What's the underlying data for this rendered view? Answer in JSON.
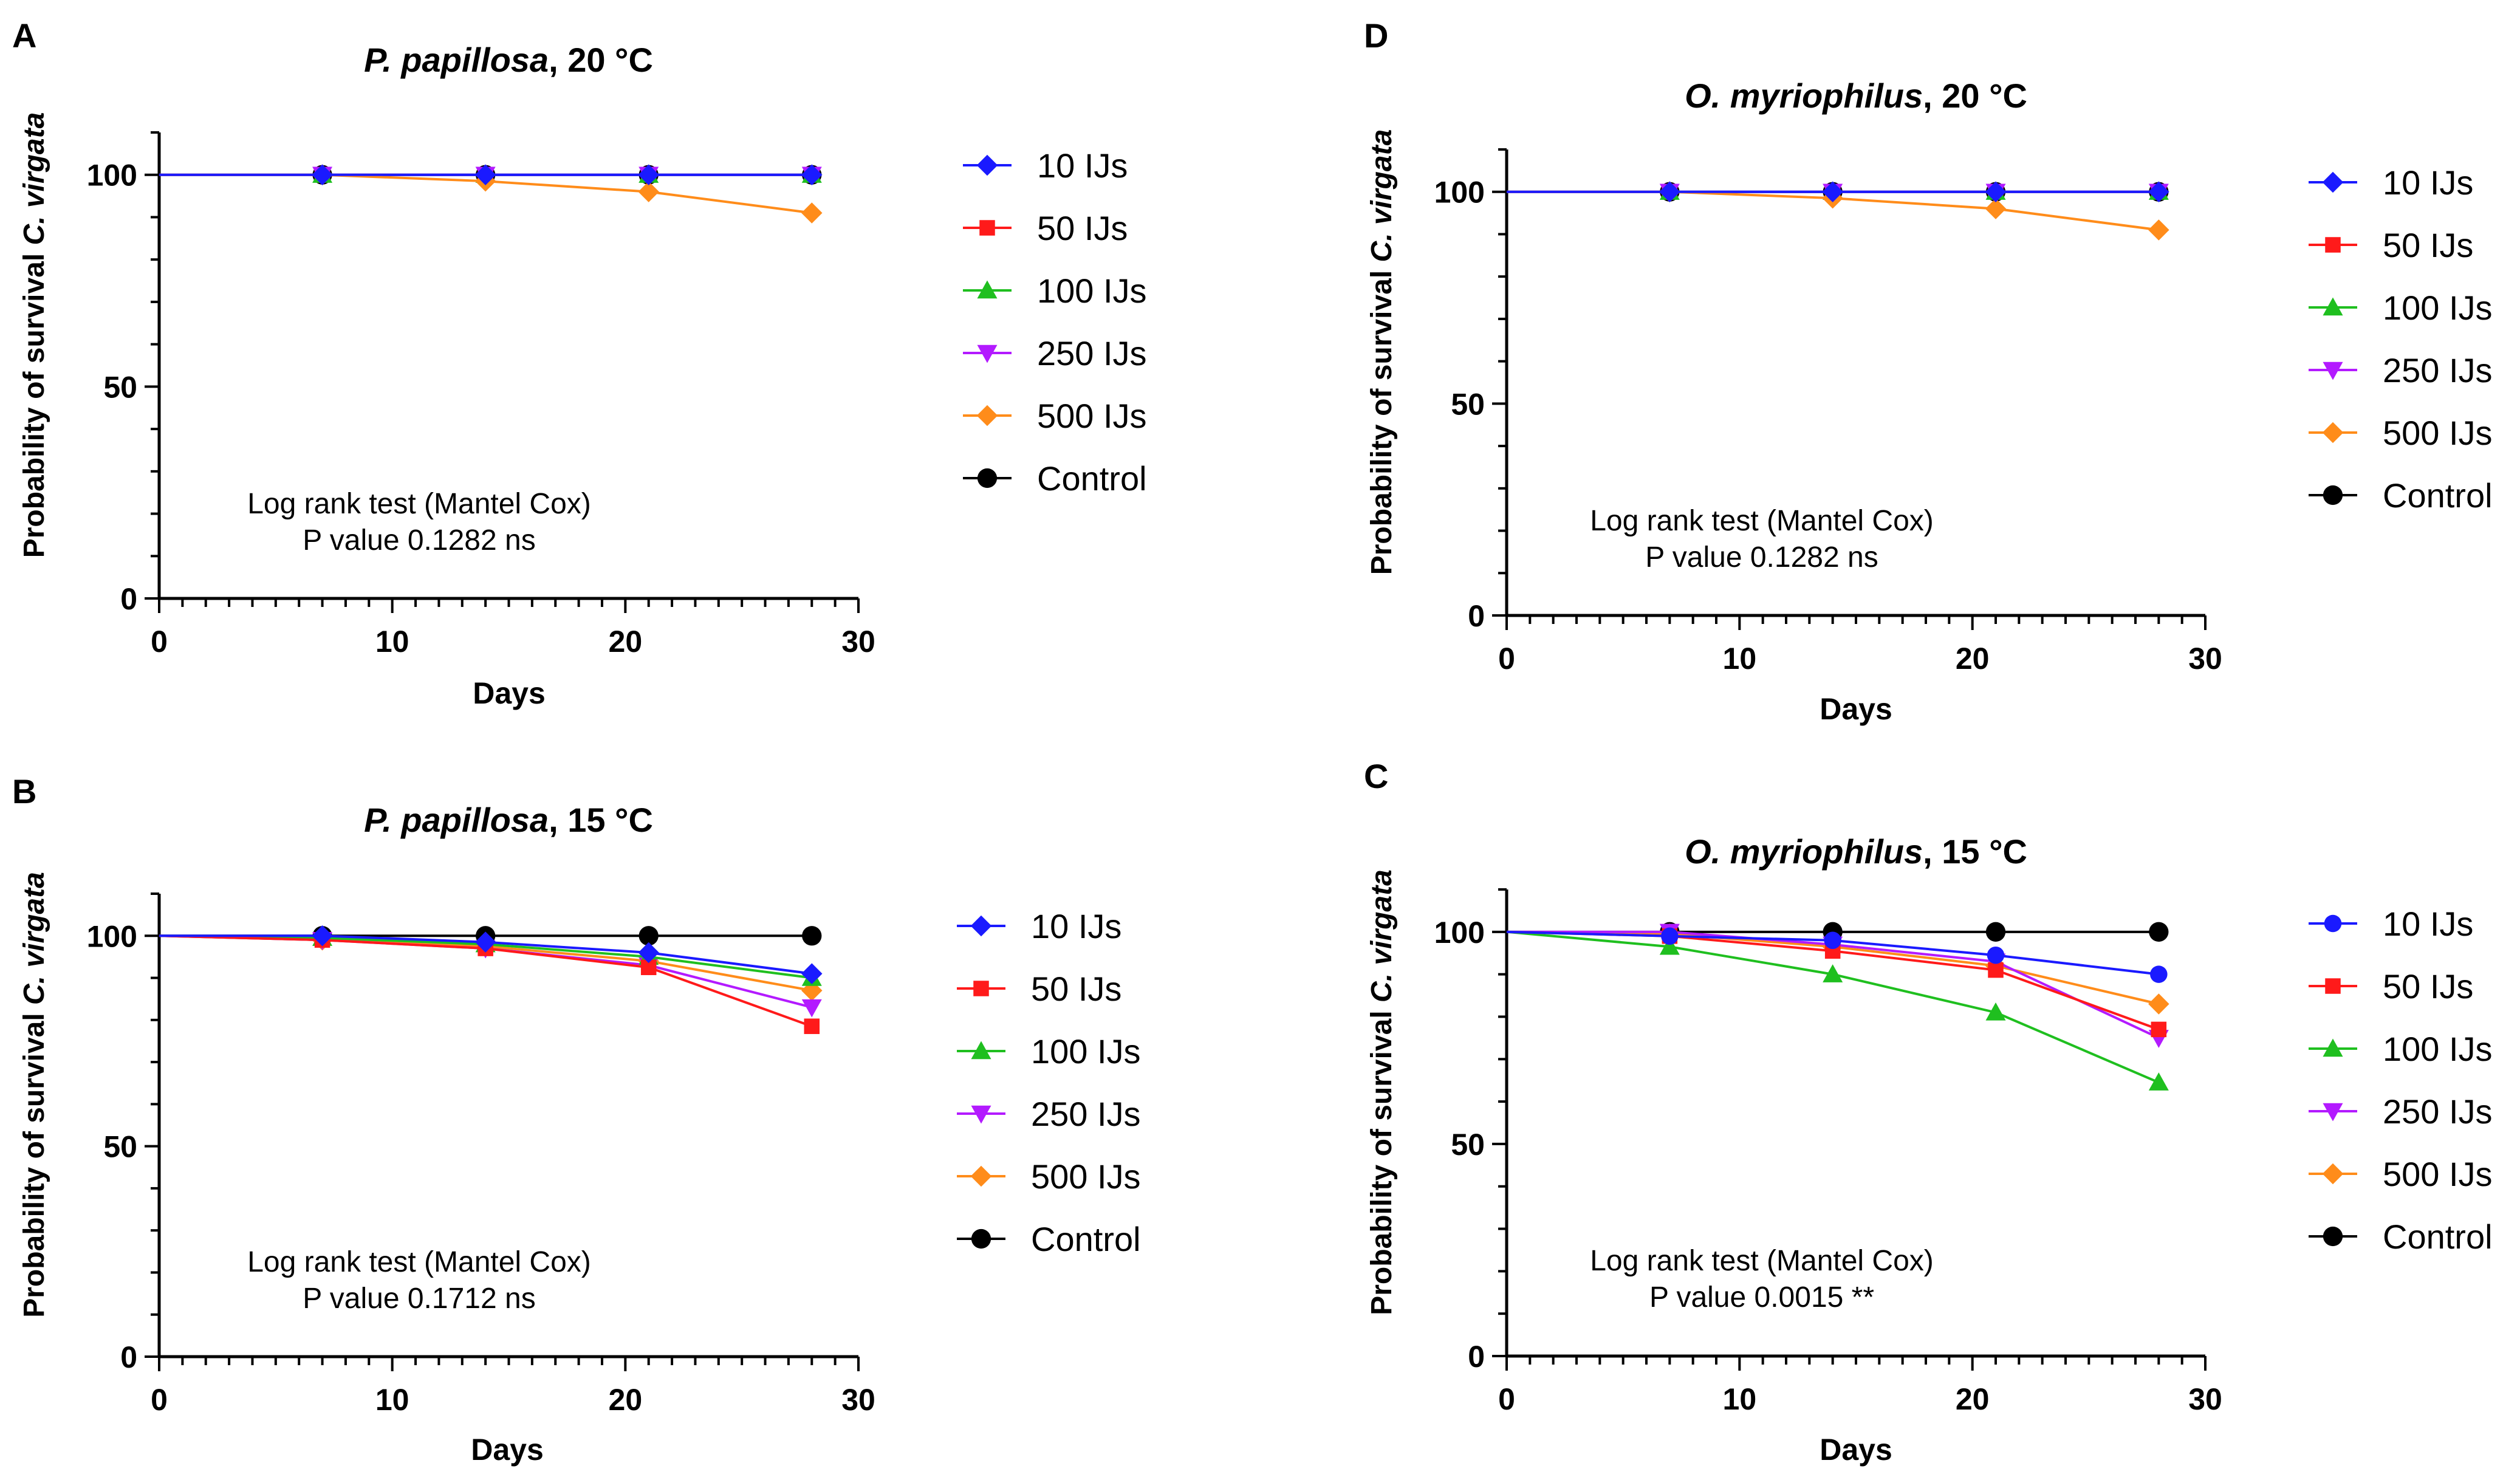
{
  "figure": {
    "legend_labels": [
      "10 IJs",
      "50 IJs",
      "100 IJs",
      "250 IJs",
      "500 IJs",
      "Control"
    ],
    "series_colors": {
      "10 IJs": "#1a1aff",
      "50 IJs": "#ff1a1a",
      "100 IJs": "#1fbf1f",
      "250 IJs": "#b31aff",
      "500 IJs": "#ff8c1a",
      "Control": "#000000"
    },
    "series_markers": {
      "10 IJs": "diamond",
      "50 IJs": "square",
      "100 IJs": "triangle-up",
      "250 IJs": "triangle-down",
      "500 IJs": "diamond",
      "Control": "circle"
    }
  },
  "chart_data": [
    {
      "panel": "A",
      "type": "line",
      "title_species": "P. papillosa",
      "title_temp": ", 20 °C",
      "xlabel": "Days",
      "ylabel_prefix": "Probability of survival ",
      "ylabel_species": "C. virgata",
      "xlim": [
        0,
        30
      ],
      "ylim": [
        0,
        110
      ],
      "xticks": [
        0,
        10,
        20,
        30
      ],
      "yticks": [
        0,
        50,
        100
      ],
      "stat_line1": "Log rank test (Mantel Cox)",
      "stat_line2": "P value 0.1282 ns",
      "x": [
        0,
        7,
        14,
        21,
        28
      ],
      "series": [
        {
          "name": "Control",
          "values": [
            100,
            100,
            100,
            100,
            100
          ]
        },
        {
          "name": "50 IJs",
          "values": [
            100,
            100,
            100,
            100,
            100
          ]
        },
        {
          "name": "100 IJs",
          "values": [
            100,
            100,
            100,
            100,
            100
          ]
        },
        {
          "name": "250 IJs",
          "values": [
            100,
            100,
            100,
            100,
            100
          ]
        },
        {
          "name": "500 IJs",
          "values": [
            100,
            100,
            98.5,
            96,
            91
          ]
        },
        {
          "name": "10 IJs",
          "values": [
            100,
            100,
            100,
            100,
            100
          ]
        }
      ]
    },
    {
      "panel": "B",
      "type": "line",
      "title_species": "P. papillosa",
      "title_temp": ", 15 °C",
      "xlabel": "Days",
      "ylabel_prefix": "Probability of survival ",
      "ylabel_species": "C. virgata",
      "xlim": [
        0,
        30
      ],
      "ylim": [
        0,
        110
      ],
      "xticks": [
        0,
        10,
        20,
        30
      ],
      "yticks": [
        0,
        50,
        100
      ],
      "stat_line1": "Log rank test (Mantel Cox)",
      "stat_line2": "P value 0.1712 ns",
      "x": [
        0,
        7,
        14,
        21,
        28
      ],
      "series": [
        {
          "name": "Control",
          "values": [
            100,
            100,
            100,
            100,
            100
          ]
        },
        {
          "name": "500 IJs",
          "values": [
            100,
            99,
            97.5,
            94,
            87
          ]
        },
        {
          "name": "250 IJs",
          "values": [
            100,
            99,
            97,
            93,
            83
          ]
        },
        {
          "name": "100 IJs",
          "values": [
            100,
            99.5,
            98,
            95,
            90
          ]
        },
        {
          "name": "50 IJs",
          "values": [
            100,
            99,
            97,
            92.5,
            78.5
          ]
        },
        {
          "name": "10 IJs",
          "values": [
            100,
            100,
            98.5,
            96,
            91
          ]
        }
      ]
    },
    {
      "panel": "D",
      "type": "line",
      "title_species": "O. myriophilus",
      "title_temp": ", 20 °C",
      "xlabel": "Days",
      "ylabel_prefix": "Probability of survival ",
      "ylabel_species": "C. virgata",
      "xlim": [
        0,
        30
      ],
      "ylim": [
        0,
        110
      ],
      "xticks": [
        0,
        10,
        20,
        30
      ],
      "yticks": [
        0,
        50,
        100
      ],
      "stat_line1": "Log rank test (Mantel Cox)",
      "stat_line2": "P value 0.1282 ns",
      "x": [
        0,
        7,
        14,
        21,
        28
      ],
      "series": [
        {
          "name": "Control",
          "values": [
            100,
            100,
            100,
            100,
            100
          ]
        },
        {
          "name": "50 IJs",
          "values": [
            100,
            100,
            100,
            100,
            100
          ]
        },
        {
          "name": "100 IJs",
          "values": [
            100,
            100,
            100,
            100,
            100
          ]
        },
        {
          "name": "250 IJs",
          "values": [
            100,
            100,
            100,
            100,
            100
          ]
        },
        {
          "name": "500 IJs",
          "values": [
            100,
            100,
            98.5,
            96,
            91
          ]
        },
        {
          "name": "10 IJs",
          "values": [
            100,
            100,
            100,
            100,
            100
          ]
        }
      ]
    },
    {
      "panel": "C",
      "type": "line",
      "title_species": "O. myriophilus",
      "title_temp": ", 15 °C",
      "xlabel": "Days",
      "ylabel_prefix": "Probability of survival ",
      "ylabel_species": "C. virgata",
      "xlim": [
        0,
        30
      ],
      "ylim": [
        0,
        110
      ],
      "xticks": [
        0,
        10,
        20,
        30
      ],
      "yticks": [
        0,
        50,
        100
      ],
      "stat_line1": "Log rank test (Mantel Cox)",
      "stat_line2": "P value 0.0015 **",
      "x": [
        0,
        7,
        14,
        21,
        28
      ],
      "series": [
        {
          "name": "Control",
          "values": [
            100,
            100,
            100,
            100,
            100
          ]
        },
        {
          "name": "500 IJs",
          "values": [
            100,
            99.5,
            96.5,
            92,
            83
          ]
        },
        {
          "name": "250 IJs",
          "values": [
            100,
            100,
            97,
            93,
            75
          ]
        },
        {
          "name": "100 IJs",
          "values": [
            100,
            96.5,
            90,
            81,
            64.5
          ]
        },
        {
          "name": "50 IJs",
          "values": [
            100,
            99,
            95.5,
            91,
            77
          ]
        },
        {
          "name": "10 IJs",
          "values": [
            100,
            99,
            98,
            94.5,
            90
          ]
        }
      ]
    }
  ]
}
